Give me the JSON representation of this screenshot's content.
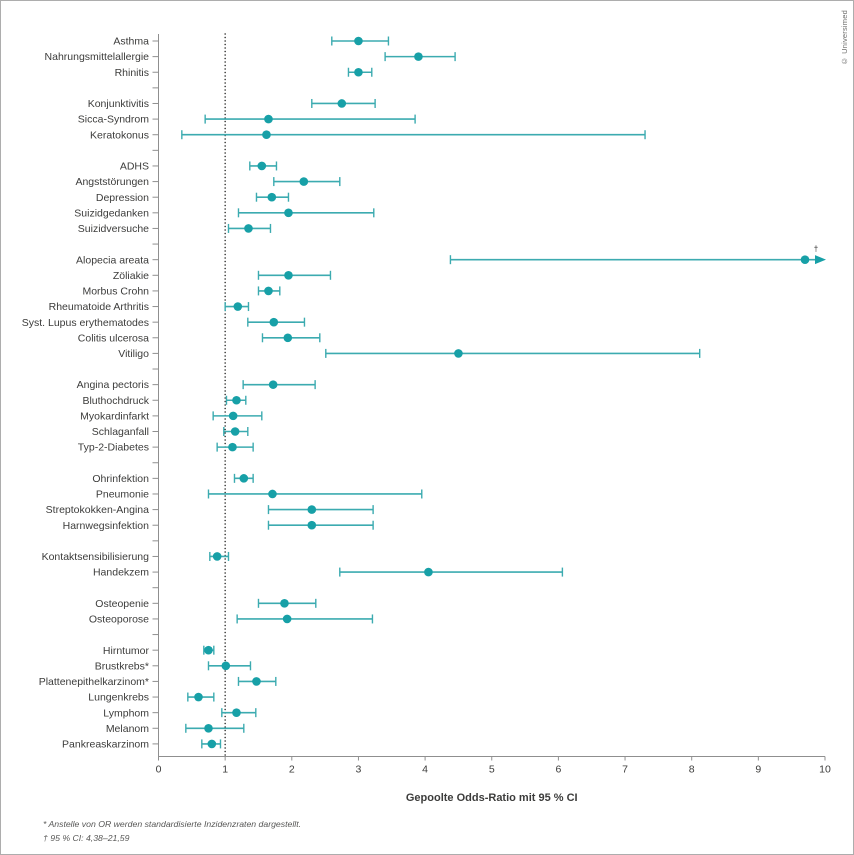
{
  "credit": "© Universimed",
  "footnotes": [
    "* Anstelle von OR werden standardisierte Inzidenzraten dargestellt.",
    "† 95 % CI: 4,38–21,59"
  ],
  "chart_data": {
    "type": "forest",
    "title": "",
    "xlabel": "Gepoolte Odds-Ratio mit 95 % CI",
    "ylabel": "",
    "xlim": [
      0,
      10
    ],
    "xticks": [
      0,
      1,
      2,
      3,
      4,
      5,
      6,
      7,
      8,
      9,
      10
    ],
    "reference_line": 1,
    "grid": false,
    "legend": "none",
    "colors": {
      "marker": "#17a0a7",
      "ci_line": "#3cabb0",
      "axis": "#8f8f8f",
      "text": "#3c3c3b",
      "reference": "#1d1d1b"
    },
    "groups": [
      {
        "items": [
          {
            "label": "Asthma",
            "or": 3.0,
            "ci_low": 2.6,
            "ci_high": 3.45
          },
          {
            "label": "Nahrungsmittelallergie",
            "or": 3.9,
            "ci_low": 3.4,
            "ci_high": 4.45
          },
          {
            "label": "Rhinitis",
            "or": 3.0,
            "ci_low": 2.85,
            "ci_high": 3.2
          }
        ]
      },
      {
        "items": [
          {
            "label": "Konjunktivitis",
            "or": 2.75,
            "ci_low": 2.3,
            "ci_high": 3.25
          },
          {
            "label": "Sicca-Syndrom",
            "or": 1.65,
            "ci_low": 0.7,
            "ci_high": 3.85
          },
          {
            "label": "Keratokonus",
            "or": 1.62,
            "ci_low": 0.35,
            "ci_high": 7.3
          }
        ]
      },
      {
        "items": [
          {
            "label": "ADHS",
            "or": 1.55,
            "ci_low": 1.37,
            "ci_high": 1.77
          },
          {
            "label": "Angststörungen",
            "or": 2.18,
            "ci_low": 1.73,
            "ci_high": 2.72
          },
          {
            "label": "Depression",
            "or": 1.7,
            "ci_low": 1.47,
            "ci_high": 1.95
          },
          {
            "label": "Suizidgedanken",
            "or": 1.95,
            "ci_low": 1.2,
            "ci_high": 3.23
          },
          {
            "label": "Suizidversuche",
            "or": 1.35,
            "ci_low": 1.05,
            "ci_high": 1.68
          }
        ]
      },
      {
        "items": [
          {
            "label": "Alopecia areata",
            "or": 9.7,
            "ci_low": 4.38,
            "ci_high": 21.59,
            "annotation": "†"
          },
          {
            "label": "Zöliakie",
            "or": 1.95,
            "ci_low": 1.5,
            "ci_high": 2.58
          },
          {
            "label": "Morbus Crohn",
            "or": 1.65,
            "ci_low": 1.5,
            "ci_high": 1.82
          },
          {
            "label": "Rheumatoide Arthritis",
            "or": 1.19,
            "ci_low": 1.0,
            "ci_high": 1.35
          },
          {
            "label": "Syst. Lupus erythematodes",
            "or": 1.73,
            "ci_low": 1.34,
            "ci_high": 2.19
          },
          {
            "label": "Colitis ulcerosa",
            "or": 1.94,
            "ci_low": 1.56,
            "ci_high": 2.42
          },
          {
            "label": "Vitiligo",
            "or": 4.5,
            "ci_low": 2.51,
            "ci_high": 8.12
          }
        ]
      },
      {
        "items": [
          {
            "label": "Angina pectoris",
            "or": 1.72,
            "ci_low": 1.27,
            "ci_high": 2.35
          },
          {
            "label": "Bluthochdruck",
            "or": 1.17,
            "ci_low": 1.02,
            "ci_high": 1.31
          },
          {
            "label": "Myokardinfarkt",
            "or": 1.12,
            "ci_low": 0.82,
            "ci_high": 1.55
          },
          {
            "label": "Schlaganfall",
            "or": 1.15,
            "ci_low": 0.98,
            "ci_high": 1.34
          },
          {
            "label": "Typ-2-Diabetes",
            "or": 1.11,
            "ci_low": 0.88,
            "ci_high": 1.42
          }
        ]
      },
      {
        "items": [
          {
            "label": "Ohrinfektion",
            "or": 1.28,
            "ci_low": 1.14,
            "ci_high": 1.42
          },
          {
            "label": "Pneumonie",
            "or": 1.71,
            "ci_low": 0.75,
            "ci_high": 3.95
          },
          {
            "label": "Streptokokken-Angina",
            "or": 2.3,
            "ci_low": 1.65,
            "ci_high": 3.22
          },
          {
            "label": "Harnwegsinfektion",
            "or": 2.3,
            "ci_low": 1.65,
            "ci_high": 3.22
          }
        ]
      },
      {
        "items": [
          {
            "label": "Kontaktsensibilisierung",
            "or": 0.88,
            "ci_low": 0.77,
            "ci_high": 1.05
          },
          {
            "label": "Handekzem",
            "or": 4.05,
            "ci_low": 2.72,
            "ci_high": 6.06
          }
        ]
      },
      {
        "items": [
          {
            "label": "Osteopenie",
            "or": 1.89,
            "ci_low": 1.5,
            "ci_high": 2.36
          },
          {
            "label": "Osteoporose",
            "or": 1.93,
            "ci_low": 1.18,
            "ci_high": 3.21
          }
        ]
      },
      {
        "items": [
          {
            "label": "Hirntumor",
            "or": 0.75,
            "ci_low": 0.68,
            "ci_high": 0.83
          },
          {
            "label": "Brustkrebs*",
            "or": 1.01,
            "ci_low": 0.75,
            "ci_high": 1.38
          },
          {
            "label": "Plattenepithelkarzinom*",
            "or": 1.47,
            "ci_low": 1.2,
            "ci_high": 1.76
          },
          {
            "label": "Lungenkrebs",
            "or": 0.6,
            "ci_low": 0.44,
            "ci_high": 0.83
          },
          {
            "label": "Lymphom",
            "or": 1.17,
            "ci_low": 0.95,
            "ci_high": 1.46
          },
          {
            "label": "Melanom",
            "or": 0.75,
            "ci_low": 0.41,
            "ci_high": 1.28
          },
          {
            "label": "Pankreaskarzinom",
            "or": 0.8,
            "ci_low": 0.65,
            "ci_high": 0.93
          }
        ]
      }
    ]
  }
}
